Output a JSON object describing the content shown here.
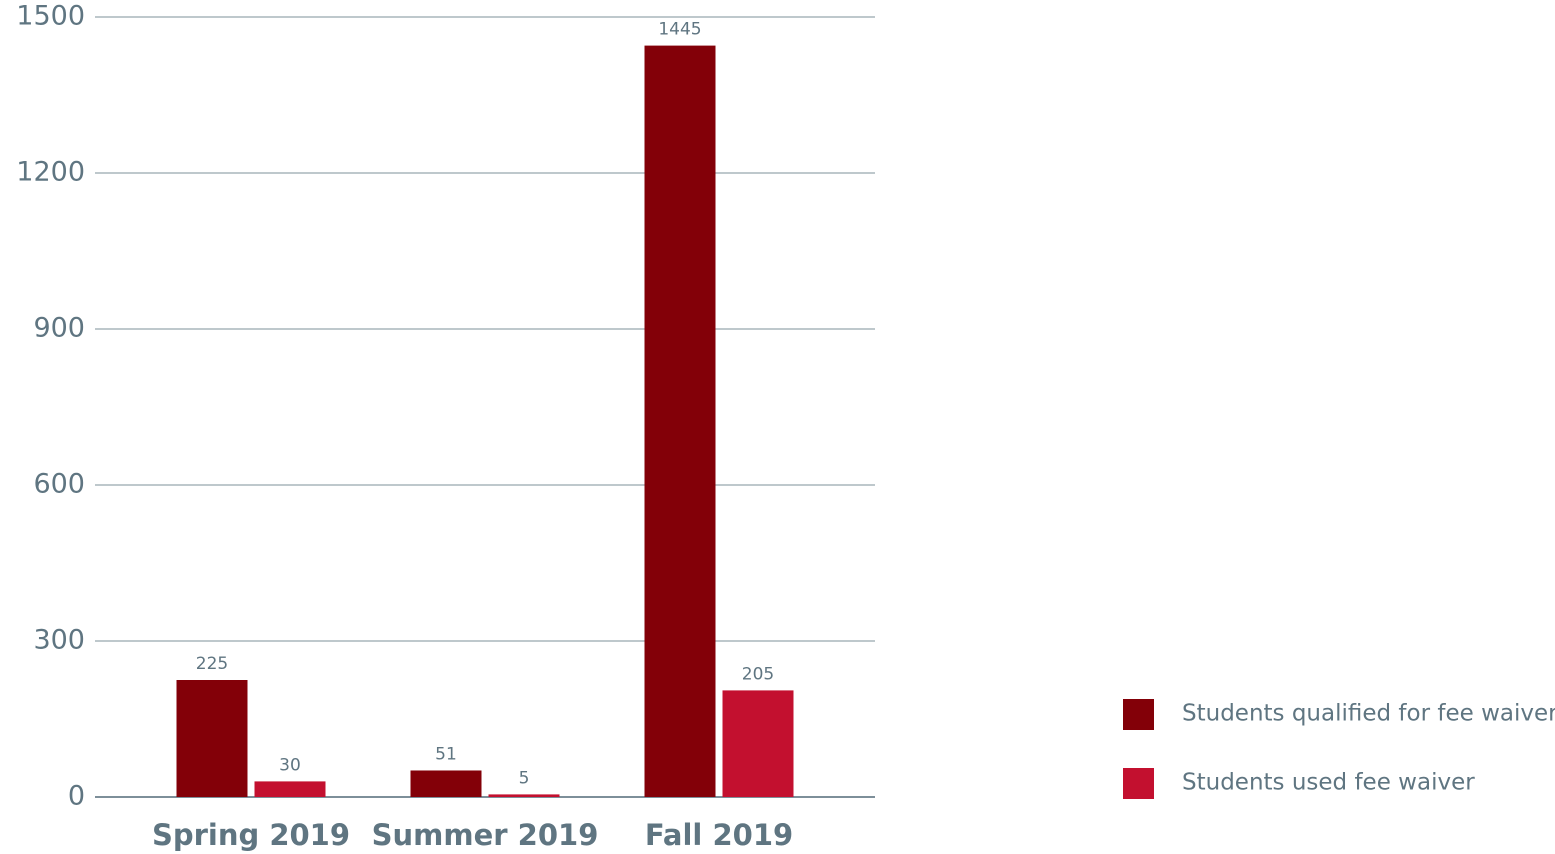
{
  "chart_data": {
    "type": "bar",
    "categories": [
      "Spring 2019",
      "Summer 2019",
      "Fall 2019"
    ],
    "series": [
      {
        "name": "Students qualified for fee waiver",
        "color": "#830008",
        "values": [
          225,
          51,
          1445
        ]
      },
      {
        "name": "Students used fee waiver",
        "color": "#c3102f",
        "values": [
          30,
          5,
          205
        ]
      }
    ],
    "ylim": [
      0,
      1500
    ],
    "yticks": [
      0,
      300,
      600,
      900,
      1200,
      1500
    ],
    "grid": true,
    "legend": "right"
  }
}
